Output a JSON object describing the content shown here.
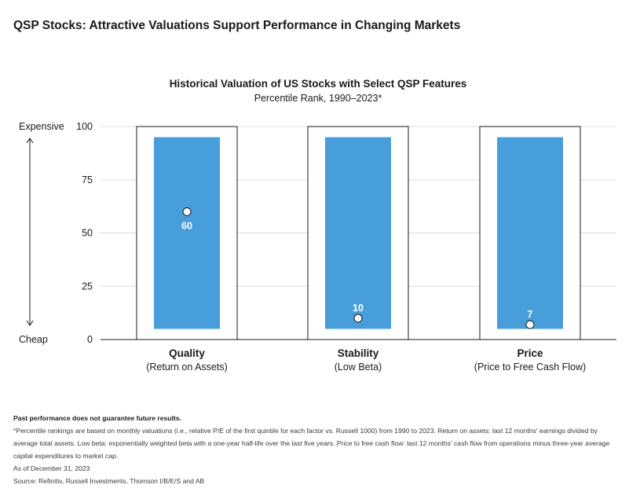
{
  "header": {
    "title": "QSP Stocks: Attractive Valuations Support Performance in Changing Markets"
  },
  "chart_data": {
    "type": "bar",
    "title": "Historical Valuation of US Stocks with Select QSP Features",
    "subtitle": "Percentile Rank, 1990–2023*",
    "ylim": [
      0,
      100
    ],
    "yticks": [
      "0",
      "25",
      "50",
      "75",
      "100"
    ],
    "ytick_values": [
      0,
      25,
      50,
      75,
      100
    ],
    "y_top_label": "Expensive",
    "y_bottom_label": "Cheap",
    "grid": true,
    "range": [
      5,
      95
    ],
    "categories": [
      {
        "name": "Quality",
        "sub": "(Return on Assets)"
      },
      {
        "name": "Stability",
        "sub": "(Low Beta)"
      },
      {
        "name": "Price",
        "sub": "(Price to Free Cash Flow)"
      }
    ],
    "values": [
      60,
      10,
      7
    ],
    "value_labels": [
      "60",
      "10",
      "7"
    ],
    "colors": {
      "bar": "#479edb",
      "box": "#1a1a1a",
      "grid": "#dcdcdc",
      "value_label_in_bar": "#ffffff",
      "value_label_on_axis": "#1a1a1a"
    }
  },
  "footnotes": {
    "disclaimer": "Past performance does not guarantee future results.",
    "note_line1": "*Percentile rankings are based on monthly valuations (i.e., relative P/E of the first quintile for each factor vs. Russell 1000) from 1990 to 2023. Return on assets: last 12 months' earnings divided by",
    "note_line2": "average total assets. Low beta: exponentially weighted beta with a one-year half-life over the last five years. Price to free cash flow: last 12 months' cash flow from operations minus three-year average",
    "note_line3": "capital expenditures to market cap.",
    "as_of": "As of December 31, 2023",
    "source": "Source: Refinitiv, Russell Investments, Thomson I/B/E/S and AB"
  }
}
